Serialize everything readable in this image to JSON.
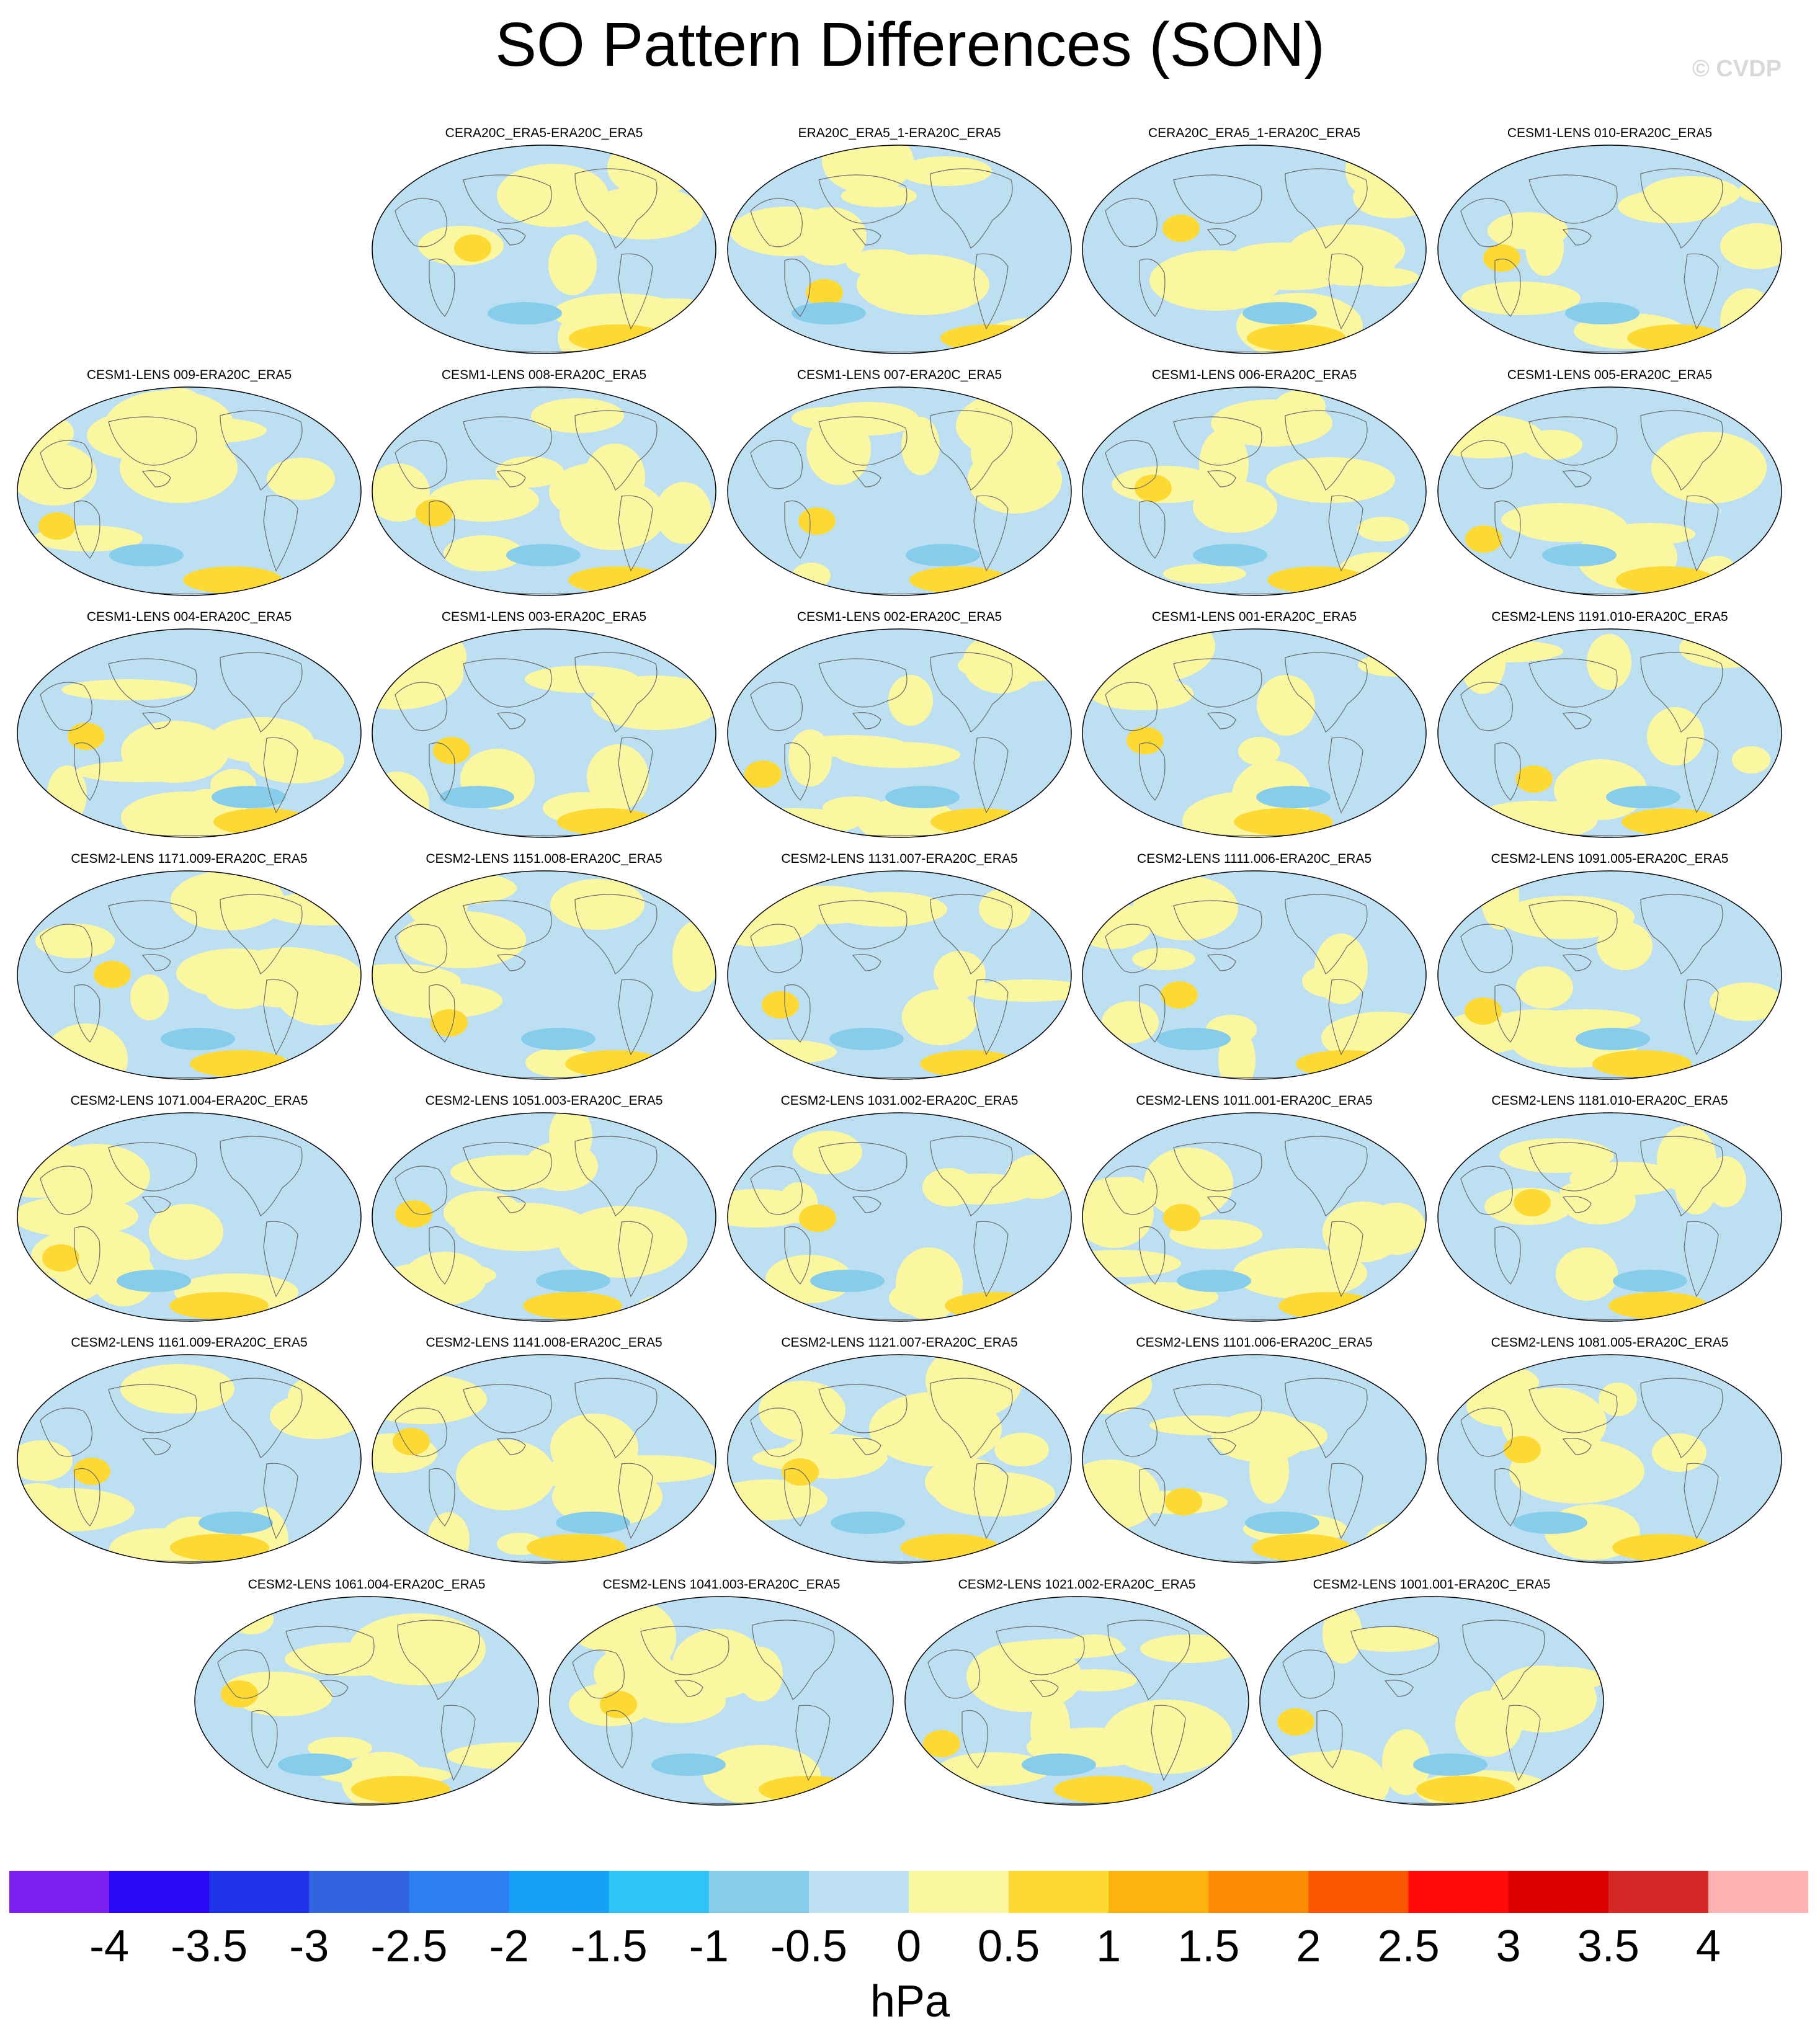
{
  "title": "SO Pattern Differences (SON)",
  "watermark": "© CVDP",
  "units": "hPa",
  "colors": {
    "levels": [
      "#7b1ff0",
      "#2a07f5",
      "#2033e8",
      "#3264e0",
      "#2c7ef2",
      "#16a0f6",
      "#2ec4f8",
      "#86cceb",
      "#bce0f1",
      "#fbf7a0",
      "#fdd933",
      "#fcb30e",
      "#fc8a05",
      "#fa5500",
      "#ff0a06",
      "#dd0000",
      "#d32825",
      "#ffb0b0"
    ],
    "land_outline": "#6b6b6b"
  },
  "colorbar_labels": [
    "-4",
    "-3.5",
    "-3",
    "-2.5",
    "-2",
    "-1.5",
    "-1",
    "-0.5",
    "0",
    "0.5",
    "1",
    "1.5",
    "2",
    "2.5",
    "3",
    "3.5",
    "4"
  ],
  "panels": [
    {
      "title": "CERA20C_ERA5-ERA20C_ERA5"
    },
    {
      "title": "ERA20C_ERA5_1-ERA20C_ERA5"
    },
    {
      "title": "CERA20C_ERA5_1-ERA20C_ERA5"
    },
    {
      "title": "CESM1-LENS 010-ERA20C_ERA5"
    },
    {
      "title": "CESM1-LENS 009-ERA20C_ERA5"
    },
    {
      "title": "CESM1-LENS 008-ERA20C_ERA5"
    },
    {
      "title": "CESM1-LENS 007-ERA20C_ERA5"
    },
    {
      "title": "CESM1-LENS 006-ERA20C_ERA5"
    },
    {
      "title": "CESM1-LENS 005-ERA20C_ERA5"
    },
    {
      "title": "CESM1-LENS 004-ERA20C_ERA5"
    },
    {
      "title": "CESM1-LENS 003-ERA20C_ERA5"
    },
    {
      "title": "CESM1-LENS 002-ERA20C_ERA5"
    },
    {
      "title": "CESM1-LENS 001-ERA20C_ERA5"
    },
    {
      "title": "CESM2-LENS 1191.010-ERA20C_ERA5"
    },
    {
      "title": "CESM2-LENS 1171.009-ERA20C_ERA5"
    },
    {
      "title": "CESM2-LENS 1151.008-ERA20C_ERA5"
    },
    {
      "title": "CESM2-LENS 1131.007-ERA20C_ERA5"
    },
    {
      "title": "CESM2-LENS 1111.006-ERA20C_ERA5"
    },
    {
      "title": "CESM2-LENS 1091.005-ERA20C_ERA5"
    },
    {
      "title": "CESM2-LENS 1071.004-ERA20C_ERA5"
    },
    {
      "title": "CESM2-LENS 1051.003-ERA20C_ERA5"
    },
    {
      "title": "CESM2-LENS 1031.002-ERA20C_ERA5"
    },
    {
      "title": "CESM2-LENS 1011.001-ERA20C_ERA5"
    },
    {
      "title": "CESM2-LENS 1181.010-ERA20C_ERA5"
    },
    {
      "title": "CESM2-LENS 1161.009-ERA20C_ERA5"
    },
    {
      "title": "CESM2-LENS 1141.008-ERA20C_ERA5"
    },
    {
      "title": "CESM2-LENS 1121.007-ERA20C_ERA5"
    },
    {
      "title": "CESM2-LENS 1101.006-ERA20C_ERA5"
    },
    {
      "title": "CESM2-LENS 1081.005-ERA20C_ERA5"
    },
    {
      "title": "CESM2-LENS 1061.004-ERA20C_ERA5"
    },
    {
      "title": "CESM2-LENS 1041.003-ERA20C_ERA5"
    },
    {
      "title": "CESM2-LENS 1021.002-ERA20C_ERA5"
    },
    {
      "title": "CESM2-LENS 1001.001-ERA20C_ERA5"
    }
  ]
}
